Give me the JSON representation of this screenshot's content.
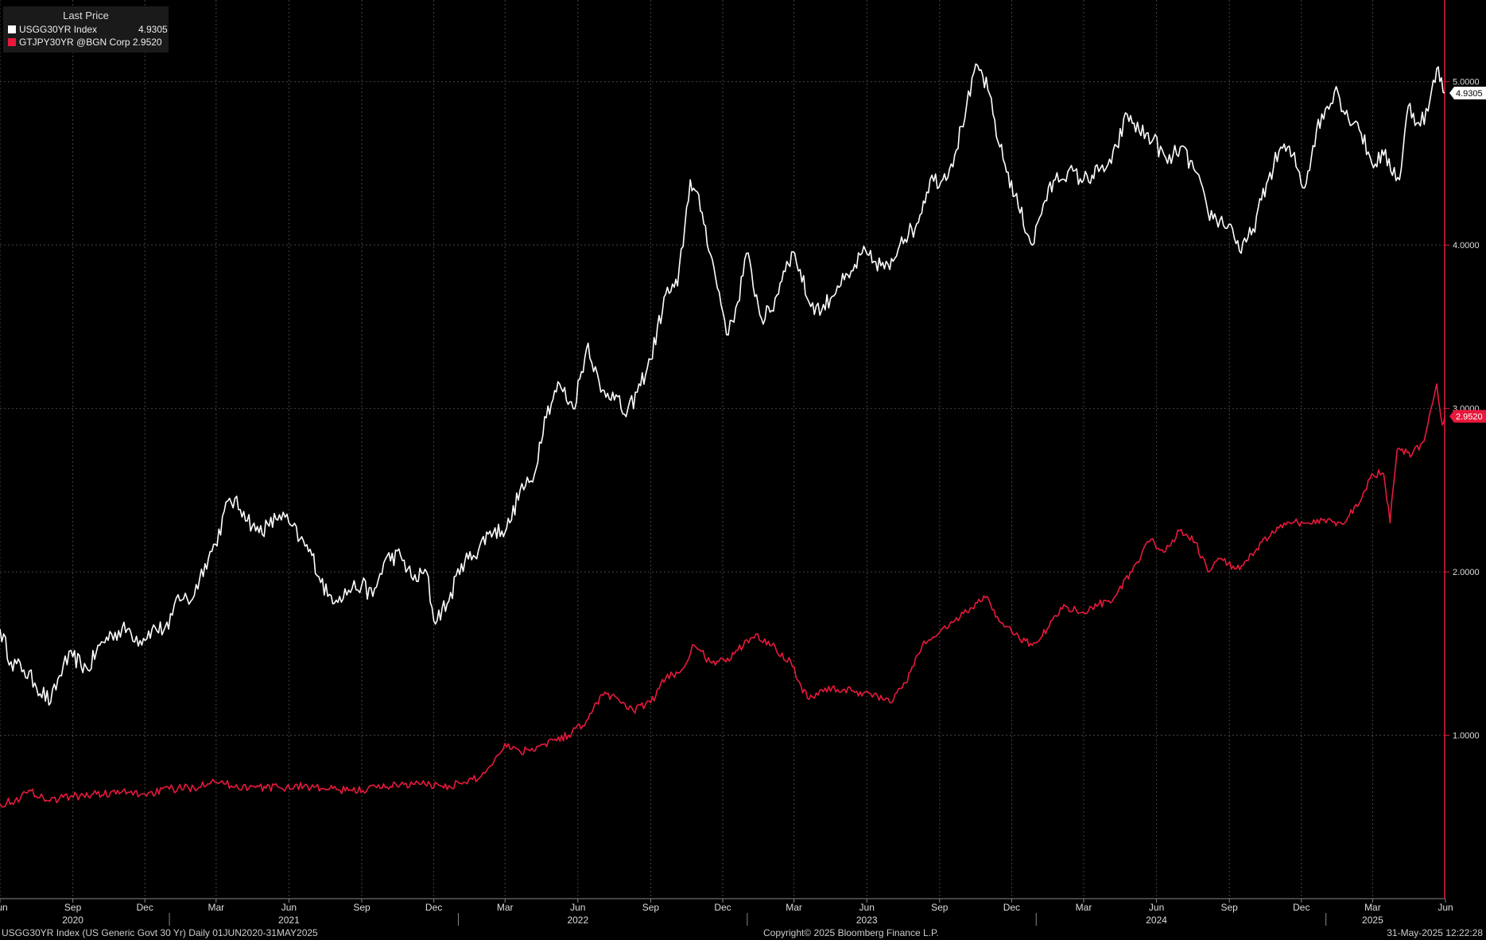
{
  "legend": {
    "title": "Last Price",
    "items": [
      {
        "label": "USGG30YR Index",
        "value": "4.9305"
      },
      {
        "label": "GTJPY30YR @BGN Corp 2.9520",
        "value": ""
      }
    ]
  },
  "footer": {
    "left": "USGG30YR Index (US Generic Govt 30 Yr)  Daily 01JUN2020-31MAY2025",
    "center": "Copyright© 2025 Bloomberg Finance L.P.",
    "right": "31-May-2025 12:22:28"
  },
  "colors": {
    "us": "#ffffff",
    "jp": "#e8193c",
    "grid": "#444444",
    "axis": "#e8193c"
  },
  "chart_data": {
    "type": "line",
    "x_range": [
      "2020-06-01",
      "2025-05-31"
    ],
    "y_range": [
      0.0,
      5.5
    ],
    "y_ticks": [
      "1.0000",
      "2.0000",
      "3.0000",
      "4.0000",
      "5.0000"
    ],
    "y_tick_values": [
      1,
      2,
      3,
      4,
      5
    ],
    "x_month_ticks": [
      {
        "label": "Jun",
        "date": "2020-06-01"
      },
      {
        "label": "Sep",
        "date": "2020-09-01"
      },
      {
        "label": "Dec",
        "date": "2020-12-01"
      },
      {
        "label": "Mar",
        "date": "2021-03-01"
      },
      {
        "label": "Jun",
        "date": "2021-06-01"
      },
      {
        "label": "Sep",
        "date": "2021-09-01"
      },
      {
        "label": "Dec",
        "date": "2021-12-01"
      },
      {
        "label": "Mar",
        "date": "2022-03-01"
      },
      {
        "label": "Jun",
        "date": "2022-06-01"
      },
      {
        "label": "Sep",
        "date": "2022-09-01"
      },
      {
        "label": "Dec",
        "date": "2022-12-01"
      },
      {
        "label": "Mar",
        "date": "2023-03-01"
      },
      {
        "label": "Jun",
        "date": "2023-06-01"
      },
      {
        "label": "Sep",
        "date": "2023-09-01"
      },
      {
        "label": "Dec",
        "date": "2023-12-01"
      },
      {
        "label": "Mar",
        "date": "2024-03-01"
      },
      {
        "label": "Jun",
        "date": "2024-06-01"
      },
      {
        "label": "Sep",
        "date": "2024-09-01"
      },
      {
        "label": "Dec",
        "date": "2024-12-01"
      },
      {
        "label": "Mar",
        "date": "2025-03-01"
      },
      {
        "label": "Jun",
        "date": "2025-06-01"
      }
    ],
    "x_year_labels": [
      {
        "label": "2020",
        "date": "2020-09-01"
      },
      {
        "label": "2021",
        "date": "2021-06-01"
      },
      {
        "label": "2022",
        "date": "2022-06-01"
      },
      {
        "label": "2023",
        "date": "2023-06-01"
      },
      {
        "label": "2024",
        "date": "2024-06-01"
      },
      {
        "label": "2025",
        "date": "2025-03-01"
      }
    ],
    "year_boundaries": [
      "2021-01-01",
      "2022-01-01",
      "2023-01-01",
      "2024-01-01",
      "2025-01-01"
    ],
    "series": [
      {
        "name": "USGG30YR Index",
        "last": 4.9305,
        "last_label": "4.9305",
        "points": [
          [
            "2020-06-01",
            1.65
          ],
          [
            "2020-06-15",
            1.45
          ],
          [
            "2020-07-01",
            1.4
          ],
          [
            "2020-07-15",
            1.32
          ],
          [
            "2020-08-04",
            1.2
          ],
          [
            "2020-08-20",
            1.43
          ],
          [
            "2020-09-01",
            1.48
          ],
          [
            "2020-09-20",
            1.4
          ],
          [
            "2020-10-05",
            1.55
          ],
          [
            "2020-10-20",
            1.62
          ],
          [
            "2020-11-09",
            1.65
          ],
          [
            "2020-11-25",
            1.58
          ],
          [
            "2020-12-10",
            1.65
          ],
          [
            "2020-12-31",
            1.65
          ],
          [
            "2021-01-12",
            1.86
          ],
          [
            "2021-01-28",
            1.82
          ],
          [
            "2021-02-15",
            2.05
          ],
          [
            "2021-02-28",
            2.17
          ],
          [
            "2021-03-18",
            2.45
          ],
          [
            "2021-04-05",
            2.37
          ],
          [
            "2021-04-20",
            2.25
          ],
          [
            "2021-05-07",
            2.28
          ],
          [
            "2021-05-20",
            2.35
          ],
          [
            "2021-06-01",
            2.3
          ],
          [
            "2021-06-15",
            2.2
          ],
          [
            "2021-06-30",
            2.1
          ],
          [
            "2021-07-20",
            1.85
          ],
          [
            "2021-08-04",
            1.85
          ],
          [
            "2021-08-20",
            1.9
          ],
          [
            "2021-09-01",
            1.92
          ],
          [
            "2021-09-15",
            1.85
          ],
          [
            "2021-10-01",
            2.08
          ],
          [
            "2021-10-20",
            2.1
          ],
          [
            "2021-11-05",
            1.95
          ],
          [
            "2021-11-22",
            2.0
          ],
          [
            "2021-12-01",
            1.7
          ],
          [
            "2021-12-20",
            1.82
          ],
          [
            "2022-01-05",
            2.05
          ],
          [
            "2022-01-20",
            2.1
          ],
          [
            "2022-02-10",
            2.25
          ],
          [
            "2022-02-25",
            2.25
          ],
          [
            "2022-03-07",
            2.3
          ],
          [
            "2022-03-20",
            2.5
          ],
          [
            "2022-04-05",
            2.55
          ],
          [
            "2022-04-20",
            2.95
          ],
          [
            "2022-05-09",
            3.15
          ],
          [
            "2022-05-26",
            3.0
          ],
          [
            "2022-06-14",
            3.4
          ],
          [
            "2022-06-30",
            3.1
          ],
          [
            "2022-07-15",
            3.1
          ],
          [
            "2022-08-01",
            2.95
          ],
          [
            "2022-08-15",
            3.1
          ],
          [
            "2022-09-01",
            3.3
          ],
          [
            "2022-09-20",
            3.7
          ],
          [
            "2022-10-05",
            3.75
          ],
          [
            "2022-10-21",
            4.4
          ],
          [
            "2022-11-05",
            4.2
          ],
          [
            "2022-11-22",
            3.8
          ],
          [
            "2022-12-08",
            3.45
          ],
          [
            "2022-12-20",
            3.65
          ],
          [
            "2022-12-31",
            3.95
          ],
          [
            "2023-01-19",
            3.55
          ],
          [
            "2023-02-01",
            3.6
          ],
          [
            "2023-02-20",
            3.9
          ],
          [
            "2023-03-02",
            3.95
          ],
          [
            "2023-03-20",
            3.65
          ],
          [
            "2023-04-05",
            3.6
          ],
          [
            "2023-04-25",
            3.75
          ],
          [
            "2023-05-10",
            3.8
          ],
          [
            "2023-05-26",
            3.95
          ],
          [
            "2023-06-10",
            3.9
          ],
          [
            "2023-06-30",
            3.85
          ],
          [
            "2023-07-15",
            4.05
          ],
          [
            "2023-08-01",
            4.1
          ],
          [
            "2023-08-20",
            4.4
          ],
          [
            "2023-09-05",
            4.4
          ],
          [
            "2023-09-20",
            4.55
          ],
          [
            "2023-10-05",
            4.85
          ],
          [
            "2023-10-19",
            5.1
          ],
          [
            "2023-11-01",
            4.95
          ],
          [
            "2023-11-16",
            4.6
          ],
          [
            "2023-12-05",
            4.3
          ],
          [
            "2023-12-27",
            4.0
          ],
          [
            "2024-01-10",
            4.25
          ],
          [
            "2024-01-25",
            4.4
          ],
          [
            "2024-02-10",
            4.45
          ],
          [
            "2024-03-01",
            4.4
          ],
          [
            "2024-03-20",
            4.45
          ],
          [
            "2024-04-05",
            4.5
          ],
          [
            "2024-04-25",
            4.8
          ],
          [
            "2024-05-10",
            4.7
          ],
          [
            "2024-05-28",
            4.65
          ],
          [
            "2024-06-15",
            4.5
          ],
          [
            "2024-07-01",
            4.6
          ],
          [
            "2024-07-20",
            4.45
          ],
          [
            "2024-08-05",
            4.2
          ],
          [
            "2024-08-20",
            4.15
          ],
          [
            "2024-09-05",
            4.1
          ],
          [
            "2024-09-16",
            3.95
          ],
          [
            "2024-10-01",
            4.1
          ],
          [
            "2024-10-20",
            4.4
          ],
          [
            "2024-11-05",
            4.6
          ],
          [
            "2024-11-20",
            4.55
          ],
          [
            "2024-12-05",
            4.35
          ],
          [
            "2024-12-20",
            4.7
          ],
          [
            "2025-01-14",
            4.97
          ],
          [
            "2025-01-25",
            4.8
          ],
          [
            "2025-02-10",
            4.75
          ],
          [
            "2025-02-28",
            4.5
          ],
          [
            "2025-03-15",
            4.55
          ],
          [
            "2025-04-04",
            4.4
          ],
          [
            "2025-04-15",
            4.85
          ],
          [
            "2025-04-28",
            4.75
          ],
          [
            "2025-05-10",
            4.82
          ],
          [
            "2025-05-21",
            5.08
          ],
          [
            "2025-05-31",
            4.93
          ]
        ]
      },
      {
        "name": "GTJPY30YR @BGN Corp",
        "last": 2.952,
        "last_label": "2.9520",
        "points": [
          [
            "2020-06-01",
            0.58
          ],
          [
            "2020-06-20",
            0.6
          ],
          [
            "2020-07-10",
            0.66
          ],
          [
            "2020-08-01",
            0.6
          ],
          [
            "2020-08-20",
            0.62
          ],
          [
            "2020-09-10",
            0.63
          ],
          [
            "2020-10-01",
            0.64
          ],
          [
            "2020-11-01",
            0.65
          ],
          [
            "2020-12-01",
            0.64
          ],
          [
            "2021-01-01",
            0.67
          ],
          [
            "2021-02-01",
            0.68
          ],
          [
            "2021-02-25",
            0.73
          ],
          [
            "2021-03-20",
            0.69
          ],
          [
            "2021-04-20",
            0.68
          ],
          [
            "2021-05-20",
            0.68
          ],
          [
            "2021-06-20",
            0.69
          ],
          [
            "2021-07-20",
            0.67
          ],
          [
            "2021-08-20",
            0.66
          ],
          [
            "2021-09-20",
            0.68
          ],
          [
            "2021-10-20",
            0.7
          ],
          [
            "2021-11-20",
            0.7
          ],
          [
            "2021-12-20",
            0.69
          ],
          [
            "2022-01-10",
            0.71
          ],
          [
            "2022-01-30",
            0.75
          ],
          [
            "2022-02-15",
            0.84
          ],
          [
            "2022-03-01",
            0.95
          ],
          [
            "2022-03-20",
            0.9
          ],
          [
            "2022-04-10",
            0.93
          ],
          [
            "2022-05-01",
            0.97
          ],
          [
            "2022-05-20",
            1.0
          ],
          [
            "2022-06-14",
            1.1
          ],
          [
            "2022-07-01",
            1.25
          ],
          [
            "2022-07-20",
            1.23
          ],
          [
            "2022-08-10",
            1.15
          ],
          [
            "2022-09-01",
            1.2
          ],
          [
            "2022-09-20",
            1.35
          ],
          [
            "2022-10-10",
            1.4
          ],
          [
            "2022-10-26",
            1.55
          ],
          [
            "2022-11-15",
            1.45
          ],
          [
            "2022-12-05",
            1.45
          ],
          [
            "2022-12-20",
            1.52
          ],
          [
            "2023-01-12",
            1.62
          ],
          [
            "2023-02-01",
            1.55
          ],
          [
            "2023-02-25",
            1.45
          ],
          [
            "2023-03-10",
            1.3
          ],
          [
            "2023-03-20",
            1.22
          ],
          [
            "2023-04-05",
            1.28
          ],
          [
            "2023-04-25",
            1.28
          ],
          [
            "2023-05-15",
            1.27
          ],
          [
            "2023-06-10",
            1.25
          ],
          [
            "2023-06-30",
            1.2
          ],
          [
            "2023-07-20",
            1.32
          ],
          [
            "2023-08-10",
            1.55
          ],
          [
            "2023-09-01",
            1.63
          ],
          [
            "2023-09-20",
            1.7
          ],
          [
            "2023-10-10",
            1.78
          ],
          [
            "2023-10-31",
            1.85
          ],
          [
            "2023-11-15",
            1.7
          ],
          [
            "2023-12-10",
            1.6
          ],
          [
            "2023-12-27",
            1.55
          ],
          [
            "2024-01-15",
            1.65
          ],
          [
            "2024-02-05",
            1.8
          ],
          [
            "2024-02-25",
            1.75
          ],
          [
            "2024-03-20",
            1.8
          ],
          [
            "2024-04-10",
            1.85
          ],
          [
            "2024-05-01",
            2.0
          ],
          [
            "2024-05-25",
            2.2
          ],
          [
            "2024-06-10",
            2.12
          ],
          [
            "2024-06-30",
            2.25
          ],
          [
            "2024-07-20",
            2.18
          ],
          [
            "2024-08-05",
            2.0
          ],
          [
            "2024-08-20",
            2.08
          ],
          [
            "2024-09-10",
            2.02
          ],
          [
            "2024-10-01",
            2.1
          ],
          [
            "2024-10-25",
            2.25
          ],
          [
            "2024-11-20",
            2.3
          ],
          [
            "2024-12-10",
            2.3
          ],
          [
            "2024-12-30",
            2.32
          ],
          [
            "2025-01-20",
            2.3
          ],
          [
            "2025-02-10",
            2.4
          ],
          [
            "2025-02-28",
            2.6
          ],
          [
            "2025-03-15",
            2.6
          ],
          [
            "2025-03-23",
            2.3
          ],
          [
            "2025-04-01",
            2.75
          ],
          [
            "2025-04-20",
            2.72
          ],
          [
            "2025-05-05",
            2.8
          ],
          [
            "2025-05-21",
            3.15
          ],
          [
            "2025-05-28",
            2.9
          ],
          [
            "2025-05-31",
            2.95
          ]
        ]
      }
    ]
  }
}
